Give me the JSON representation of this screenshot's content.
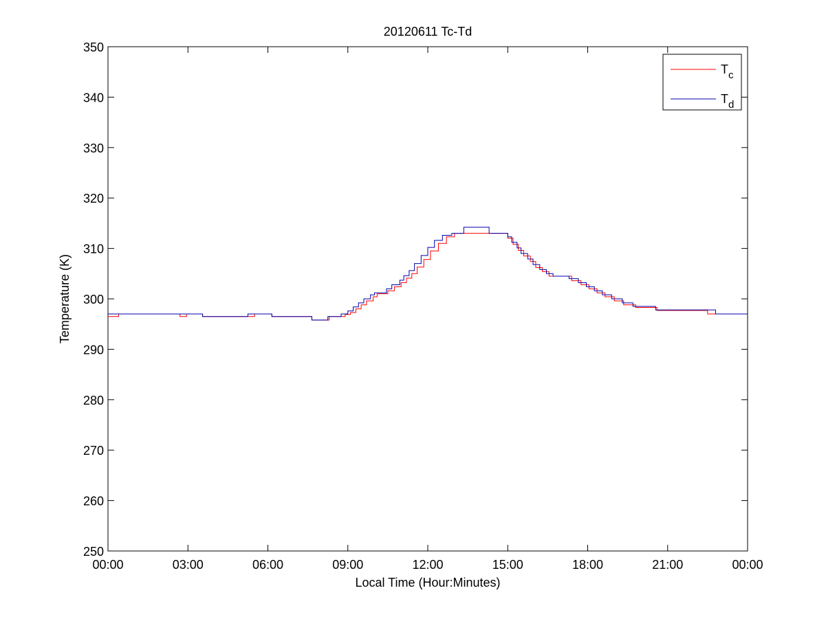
{
  "chart_data": {
    "type": "line",
    "title": "20120611 Tc-Td",
    "xlabel": "Local Time (Hour:Minutes)",
    "ylabel": "Temperature (K)",
    "xlim": [
      0,
      24
    ],
    "ylim": [
      250,
      350
    ],
    "x_ticks": [
      0,
      3,
      6,
      9,
      12,
      15,
      18,
      21,
      24
    ],
    "x_tick_labels": [
      "00:00",
      "03:00",
      "06:00",
      "09:00",
      "12:00",
      "15:00",
      "18:00",
      "21:00",
      "00:00"
    ],
    "y_ticks": [
      250,
      260,
      270,
      280,
      290,
      300,
      310,
      320,
      330,
      340,
      350
    ],
    "y_tick_labels": [
      "250",
      "260",
      "270",
      "280",
      "290",
      "300",
      "310",
      "320",
      "330",
      "340",
      "350"
    ],
    "grid": false,
    "legend": {
      "position": "top-right",
      "entries": [
        {
          "base": "T",
          "sub": "c"
        },
        {
          "base": "T",
          "sub": "d"
        }
      ]
    },
    "series": [
      {
        "color": "#ff0000",
        "step": true,
        "x": [
          0.0,
          0.4,
          2.7,
          2.95,
          3.55,
          5.25,
          5.5,
          6.15,
          7.65,
          8.3,
          8.5,
          8.9,
          9.1,
          9.3,
          9.5,
          9.7,
          9.95,
          10.1,
          10.5,
          10.75,
          11.0,
          11.2,
          11.4,
          11.6,
          11.85,
          12.1,
          12.4,
          12.7,
          13.0,
          14.5,
          15.0,
          15.2,
          15.4,
          15.6,
          15.85,
          16.05,
          16.3,
          16.55,
          16.75,
          17.4,
          17.75,
          18.05,
          18.35,
          18.65,
          19.0,
          19.35,
          19.8,
          20.6,
          22.5,
          22.85,
          24.0
        ],
        "y": [
          296.5,
          297.0,
          296.5,
          297.0,
          296.5,
          296.5,
          297.0,
          296.5,
          295.8,
          296.5,
          296.5,
          296.9,
          297.3,
          298.0,
          298.8,
          299.6,
          300.4,
          301.0,
          301.6,
          302.4,
          303.2,
          304.1,
          305.0,
          306.3,
          307.8,
          309.5,
          311.0,
          312.3,
          313.0,
          313.0,
          312.0,
          310.8,
          309.6,
          308.5,
          307.4,
          306.2,
          305.4,
          304.5,
          304.5,
          303.6,
          302.8,
          302.0,
          301.2,
          300.4,
          299.6,
          298.8,
          298.3,
          297.7,
          297.0,
          297.0,
          297.0
        ]
      },
      {
        "color": "#0000aa",
        "step": true,
        "x": [
          0.0,
          2.7,
          3.55,
          5.25,
          6.15,
          7.65,
          8.25,
          8.75,
          9.0,
          9.2,
          9.4,
          9.6,
          9.85,
          10.0,
          10.45,
          10.65,
          10.95,
          11.1,
          11.3,
          11.5,
          11.75,
          12.0,
          12.25,
          12.55,
          12.9,
          13.35,
          14.3,
          15.0,
          15.15,
          15.35,
          15.5,
          15.75,
          15.95,
          16.2,
          16.45,
          16.7,
          17.3,
          17.65,
          17.95,
          18.25,
          18.55,
          18.9,
          19.3,
          19.7,
          20.55,
          22.8,
          24.0
        ],
        "y": [
          297.0,
          297.0,
          296.5,
          297.0,
          296.5,
          295.8,
          296.5,
          297.0,
          297.6,
          298.4,
          299.2,
          300.0,
          300.8,
          301.2,
          302.0,
          302.8,
          303.7,
          304.6,
          305.6,
          307.0,
          308.6,
          310.2,
          311.6,
          312.6,
          313.0,
          314.2,
          313.0,
          312.3,
          311.2,
          310.1,
          309.0,
          307.9,
          306.8,
          305.8,
          305.0,
          304.5,
          304.0,
          303.2,
          302.4,
          301.6,
          300.8,
          300.0,
          299.2,
          298.5,
          297.8,
          297.0,
          297.0
        ]
      }
    ]
  }
}
